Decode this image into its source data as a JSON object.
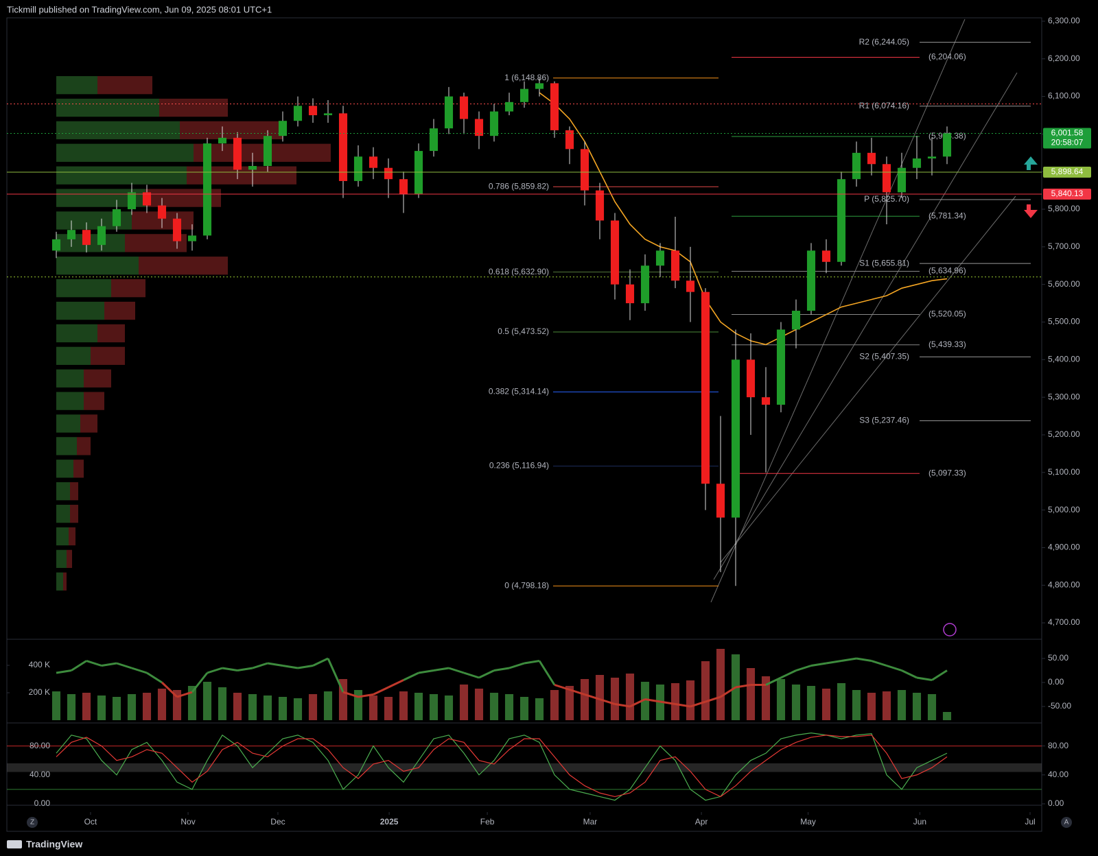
{
  "header": {
    "text": "Tickmill published on TradingView.com, Jun 09, 2025 08:01 UTC+1"
  },
  "footer": {
    "text": "TradingView"
  },
  "corner_icons": {
    "left": "Z",
    "right": "A"
  },
  "chart_data": [
    {
      "type": "candlestick",
      "up_color": "#1f9d2a",
      "down_color": "#f01e1e",
      "xlim": [
        0,
        59
      ],
      "ylim": [
        4660,
        6309
      ],
      "xticks": [
        {
          "value": 2.27,
          "label": "Oct"
        },
        {
          "value": 8.73,
          "label": "Nov"
        },
        {
          "value": 14.68,
          "label": "Dec"
        },
        {
          "value": 22.05,
          "label": "2025",
          "bold": true
        },
        {
          "value": 28.55,
          "label": "Feb"
        },
        {
          "value": 35.36,
          "label": "Mar"
        },
        {
          "value": 42.73,
          "label": "Apr"
        },
        {
          "value": 49.8,
          "label": "May"
        },
        {
          "value": 57.2,
          "label": "Jun"
        },
        {
          "value": 64.5,
          "label": "Jul"
        }
      ],
      "yticks": [
        {
          "value": 6300,
          "label": "6,300.00"
        },
        {
          "value": 6200,
          "label": "6,200.00"
        },
        {
          "value": 6100,
          "label": "6,100.00"
        },
        {
          "value": 6000,
          "label": "6,000.00"
        },
        {
          "value": 5900,
          "label": "5,900.00"
        },
        {
          "value": 5800,
          "label": "5,800.00"
        },
        {
          "value": 5700,
          "label": "5,700.00"
        },
        {
          "value": 5600,
          "label": "5,600.00"
        },
        {
          "value": 5500,
          "label": "5,500.00"
        },
        {
          "value": 5400,
          "label": "5,400.00"
        },
        {
          "value": 5300,
          "label": "5,300.00"
        },
        {
          "value": 5200,
          "label": "5,200.00"
        },
        {
          "value": 5100,
          "label": "5,100.00"
        },
        {
          "value": 5000,
          "label": "5,000.00"
        },
        {
          "value": 4900,
          "label": "4,900.00"
        },
        {
          "value": 4800,
          "label": "4,800.00"
        },
        {
          "value": 4700,
          "label": "4,700.00"
        }
      ],
      "open": [
        5690,
        5720,
        5745,
        5705,
        5755,
        5800,
        5845,
        5810,
        5775,
        5715,
        5730,
        5975,
        5990,
        5905,
        5915,
        5995,
        6035,
        6075,
        6050,
        6055,
        5875,
        5940,
        5910,
        5880,
        5840,
        5955,
        6015,
        6100,
        6040,
        5995,
        6060,
        6085,
        6120,
        6135,
        6010,
        5960,
        5850,
        5770,
        5600,
        5550,
        5650,
        5690,
        5610,
        5580,
        5070,
        4980,
        5400,
        5300,
        5280,
        5480,
        5530,
        5690,
        5660,
        5880,
        5950,
        5920,
        5845,
        5910,
        5935,
        5940
      ],
      "high": [
        5740,
        5770,
        5765,
        5775,
        5825,
        5870,
        5865,
        5830,
        5790,
        5760,
        5990,
        6020,
        6005,
        5950,
        6010,
        6060,
        6100,
        6095,
        6090,
        6075,
        5970,
        5965,
        5935,
        5900,
        5975,
        6040,
        6125,
        6110,
        6060,
        6080,
        6110,
        6140,
        6148.86,
        6140,
        6020,
        5980,
        5870,
        5790,
        5640,
        5680,
        5710,
        5780,
        5700,
        5590,
        5250,
        5480,
        5470,
        5380,
        5500,
        5560,
        5710,
        5720,
        5900,
        5980,
        5990,
        5940,
        5950,
        5995,
        5990,
        6020
      ],
      "low": [
        5670,
        5700,
        5685,
        5690,
        5740,
        5785,
        5790,
        5750,
        5695,
        5690,
        5720,
        5955,
        5880,
        5860,
        5900,
        5980,
        6020,
        6030,
        6030,
        5830,
        5860,
        5880,
        5830,
        5790,
        5830,
        5940,
        6000,
        6000,
        5960,
        5980,
        6050,
        6070,
        6100,
        5990,
        5920,
        5810,
        5720,
        5560,
        5505,
        5530,
        5620,
        5590,
        5500,
        5000,
        4835,
        4798.18,
        5200,
        5100,
        5260,
        5430,
        5520,
        5630,
        5650,
        5860,
        5890,
        5760,
        5830,
        5880,
        5890,
        5920
      ],
      "close": [
        5720,
        5745,
        5705,
        5755,
        5800,
        5845,
        5810,
        5775,
        5715,
        5730,
        5975,
        5990,
        5905,
        5915,
        5995,
        6035,
        6075,
        6050,
        6055,
        5875,
        5940,
        5910,
        5880,
        5840,
        5955,
        6015,
        6100,
        6040,
        5995,
        6060,
        6085,
        6120,
        6135,
        6010,
        5960,
        5850,
        5770,
        5600,
        5550,
        5650,
        5690,
        5610,
        5580,
        5070,
        4980,
        5400,
        5300,
        5280,
        5480,
        5530,
        5690,
        5660,
        5880,
        5950,
        5920,
        5845,
        5910,
        5935,
        5940,
        6001.58
      ],
      "ma": {
        "color": "#f5a623",
        "values": [
          null,
          null,
          null,
          null,
          null,
          null,
          null,
          null,
          null,
          null,
          null,
          null,
          null,
          null,
          null,
          null,
          null,
          null,
          null,
          null,
          null,
          null,
          null,
          null,
          null,
          null,
          null,
          null,
          null,
          null,
          null,
          null,
          6110,
          6080,
          6040,
          5980,
          5900,
          5820,
          5760,
          5720,
          5700,
          5690,
          5660,
          5560,
          5500,
          5470,
          5450,
          5440,
          5460,
          5480,
          5500,
          5520,
          5540,
          5550,
          5560,
          5570,
          5590,
          5600,
          5610,
          5615
        ]
      },
      "volume_profile": {
        "buy_color": "#1e4a1e",
        "sell_color": "#5c1818",
        "prices": [
          6130,
          6070,
          6010,
          5950,
          5890,
          5830,
          5770,
          5710,
          5650,
          5590,
          5530,
          5470,
          5410,
          5350,
          5290,
          5230,
          5170,
          5110,
          5050,
          4990,
          4930,
          4870,
          4810
        ],
        "buy": [
          60,
          150,
          180,
          200,
          190,
          130,
          110,
          100,
          120,
          80,
          70,
          60,
          50,
          40,
          40,
          35,
          30,
          25,
          20,
          20,
          18,
          15,
          10
        ],
        "sell": [
          80,
          100,
          150,
          200,
          160,
          110,
          90,
          90,
          130,
          50,
          45,
          40,
          50,
          40,
          30,
          25,
          20,
          15,
          12,
          12,
          10,
          8,
          5
        ]
      },
      "levels": [
        {
          "value": 6080,
          "color": "#ff4d4d"
        },
        {
          "value": 5620,
          "color": "#9acd32"
        }
      ],
      "tags": [
        {
          "label": "6,001.58",
          "sub": "20:58:07",
          "value": 6001.58,
          "color": "#1e9e3a",
          "dashed": true
        },
        {
          "label": "5,898.64",
          "value": 5898.64,
          "color": "#8fbc3f",
          "dashed": false
        },
        {
          "label": "5,840.13",
          "value": 5840.13,
          "color": "#f23645",
          "dashed": false
        }
      ],
      "fib": [
        {
          "label": "1 (6,148.86)",
          "value": 6148.86,
          "color": "#f7931a"
        },
        {
          "label": "0.786 (5,859.82)",
          "value": 5859.82,
          "color": "#e04848"
        },
        {
          "label": "0.618 (5,632.90)",
          "value": 5632.9,
          "color": "#557a3c"
        },
        {
          "label": "0.5 (5,473.52)",
          "value": 5473.52,
          "color": "#4c8c3a"
        },
        {
          "label": "0.382 (5,314.14)",
          "value": 5314.14,
          "color": "#2962ff"
        },
        {
          "label": "0.236 (5,116.94)",
          "value": 5116.94,
          "color": "#1c2c5a"
        },
        {
          "label": "0 (4,798.18)",
          "value": 4798.18,
          "color": "#f7931a"
        }
      ],
      "pivots": [
        {
          "label": "R2 (6,244.05)",
          "value": 6244.05
        },
        {
          "label": "R1 (6,074.16)",
          "value": 6074.16
        },
        {
          "label": "P (5,825.70)",
          "value": 5825.7
        },
        {
          "label": "S1 (5,655.81)",
          "value": 5655.81
        },
        {
          "label": "S2 (5,407.35)",
          "value": 5407.35
        },
        {
          "label": "S3 (5,237.46)",
          "value": 5237.46
        }
      ],
      "zones": [
        {
          "label": "(6,204.06)",
          "value": 6204.06,
          "color": "#f23645"
        },
        {
          "label": "(5,993.38)",
          "value": 5993.38,
          "color": "#2e9e3e"
        },
        {
          "label": "(5,781.34)",
          "value": 5781.34,
          "color": "#2e9e3e"
        },
        {
          "label": "(5,634.96)",
          "value": 5634.96,
          "color": "#888888"
        },
        {
          "label": "(5,520.05)",
          "value": 5520.05,
          "color": "#888888"
        },
        {
          "label": "(5,439.33)",
          "value": 5439.33,
          "color": "#888888"
        },
        {
          "label": "(5,097.33)",
          "value": 5097.33,
          "color": "#f23645"
        }
      ]
    },
    {
      "type": "bar",
      "up_color": "#2f6e2f",
      "down_color": "#8c2c2c",
      "ylim": [
        -10000,
        575000
      ],
      "yticks": [
        {
          "value": 200000,
          "label": "200 K"
        },
        {
          "value": 400000,
          "label": "400 K"
        }
      ],
      "values": [
        210000,
        190000,
        200000,
        180000,
        170000,
        190000,
        200000,
        230000,
        220000,
        250000,
        280000,
        240000,
        200000,
        190000,
        180000,
        170000,
        160000,
        190000,
        210000,
        300000,
        220000,
        180000,
        170000,
        210000,
        200000,
        190000,
        180000,
        260000,
        230000,
        200000,
        190000,
        170000,
        160000,
        220000,
        250000,
        300000,
        330000,
        310000,
        340000,
        280000,
        260000,
        270000,
        290000,
        430000,
        520000,
        480000,
        380000,
        320000,
        300000,
        260000,
        250000,
        230000,
        270000,
        220000,
        200000,
        210000,
        220000,
        200000,
        190000,
        60000
      ],
      "oscillator": {
        "pos_color": "#3d8b3d",
        "neg_color": "#c0392b",
        "y2lim": [
          -81.4,
          85.7
        ],
        "y2ticks": [
          {
            "value": 50,
            "label": "50.00"
          },
          {
            "value": 0,
            "label": "0.00"
          },
          {
            "value": -50,
            "label": "-50.00"
          }
        ],
        "values": [
          20,
          25,
          45,
          35,
          40,
          30,
          20,
          0,
          -30,
          -20,
          20,
          30,
          25,
          30,
          40,
          35,
          30,
          35,
          50,
          -20,
          -30,
          -25,
          -10,
          5,
          20,
          25,
          30,
          20,
          10,
          25,
          30,
          40,
          45,
          -5,
          -15,
          -25,
          -35,
          -45,
          -50,
          -35,
          -40,
          -45,
          -50,
          -40,
          -30,
          -10,
          -5,
          -5,
          10,
          25,
          35,
          40,
          45,
          50,
          45,
          35,
          25,
          10,
          5,
          25
        ]
      }
    },
    {
      "type": "line",
      "ylim": [
        -1,
        109
      ],
      "yticks": [
        {
          "value": 80,
          "label": "80.00"
        },
        {
          "value": 40,
          "label": "40.00"
        },
        {
          "value": 0,
          "label": "0.00"
        }
      ],
      "overbought": 80,
      "oversold": 20,
      "mid_band": [
        44,
        56
      ],
      "series": [
        {
          "color": "#4caf50",
          "values": [
            70,
            95,
            90,
            60,
            40,
            75,
            85,
            60,
            30,
            20,
            60,
            95,
            80,
            50,
            70,
            90,
            95,
            85,
            60,
            20,
            40,
            80,
            50,
            30,
            60,
            90,
            95,
            70,
            40,
            60,
            90,
            95,
            85,
            40,
            20,
            15,
            10,
            5,
            20,
            50,
            80,
            60,
            20,
            5,
            10,
            40,
            60,
            70,
            90,
            95,
            98,
            95,
            90,
            95,
            97,
            40,
            20,
            50,
            60,
            70
          ]
        },
        {
          "color": "#e53935",
          "values": [
            65,
            85,
            92,
            80,
            60,
            65,
            75,
            70,
            50,
            30,
            45,
            75,
            85,
            70,
            65,
            80,
            90,
            90,
            75,
            50,
            35,
            55,
            60,
            45,
            50,
            75,
            90,
            85,
            60,
            55,
            75,
            90,
            90,
            65,
            40,
            25,
            15,
            10,
            15,
            30,
            60,
            65,
            45,
            20,
            10,
            25,
            45,
            60,
            75,
            85,
            92,
            95,
            93,
            93,
            95,
            70,
            35,
            40,
            50,
            65
          ]
        }
      ]
    }
  ]
}
